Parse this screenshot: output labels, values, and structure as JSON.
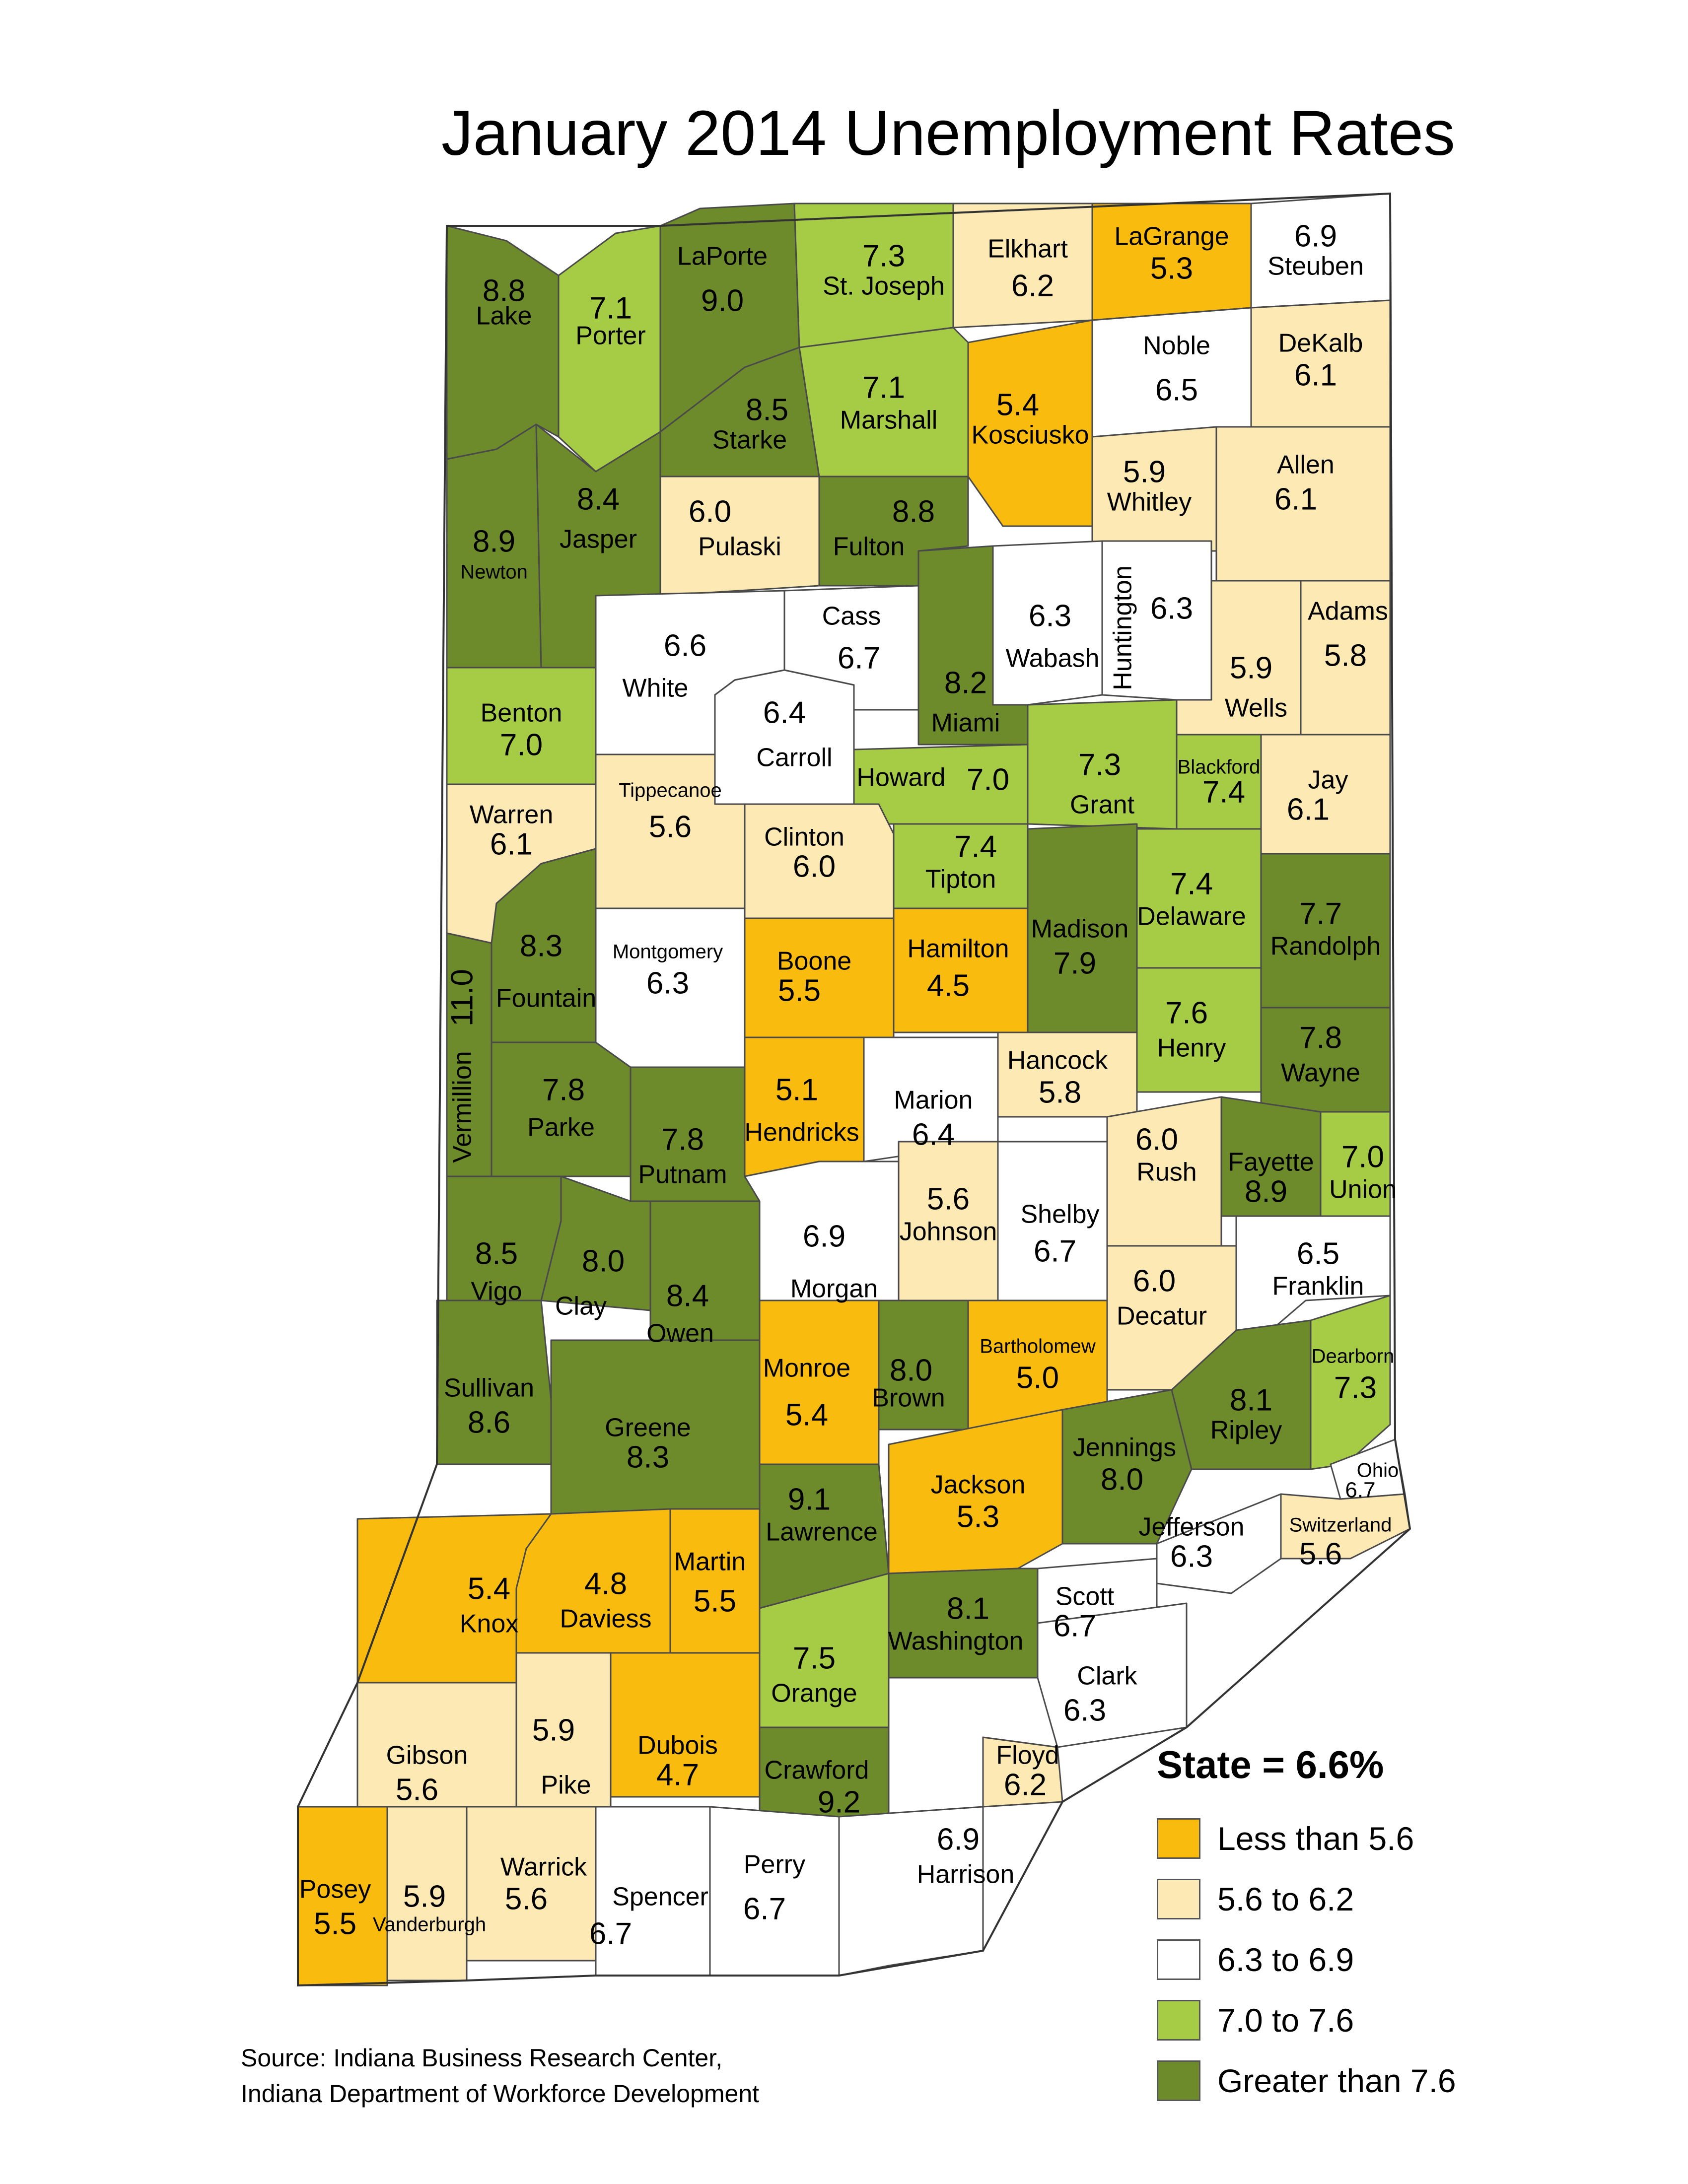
{
  "title": "January 2014 Unemployment Rates",
  "legend": {
    "title": "State = 6.6%",
    "items": [
      {
        "label": "Less than 5.6",
        "color": "#F9BC0E"
      },
      {
        "label": "5.6 to 6.2",
        "color": "#FDE9B4"
      },
      {
        "label": "6.3 to 6.9",
        "color": "#FFFFFF"
      },
      {
        "label": "7.0 to 7.6",
        "color": "#A6CC46"
      },
      {
        "label": "Greater than 7.6",
        "color": "#6D8B2B"
      }
    ]
  },
  "source": [
    "Source: Indiana Business Research Center,",
    "Indiana Department of Workforce Development"
  ],
  "counties": [
    {
      "name": "Lake",
      "rate": "8.8",
      "cat": 4
    },
    {
      "name": "Porter",
      "rate": "7.1",
      "cat": 3
    },
    {
      "name": "LaPorte",
      "rate": "9.0",
      "cat": 4
    },
    {
      "name": "St. Joseph",
      "rate": "7.3",
      "cat": 3
    },
    {
      "name": "Elkhart",
      "rate": "6.2",
      "cat": 1
    },
    {
      "name": "LaGrange",
      "rate": "5.3",
      "cat": 0
    },
    {
      "name": "Steuben",
      "rate": "6.9",
      "cat": 2
    },
    {
      "name": "Starke",
      "rate": "8.5",
      "cat": 4
    },
    {
      "name": "Marshall",
      "rate": "7.1",
      "cat": 3
    },
    {
      "name": "Kosciusko",
      "rate": "5.4",
      "cat": 0
    },
    {
      "name": "Noble",
      "rate": "6.5",
      "cat": 2
    },
    {
      "name": "DeKalb",
      "rate": "6.1",
      "cat": 1
    },
    {
      "name": "Newton",
      "rate": "8.9",
      "cat": 4
    },
    {
      "name": "Jasper",
      "rate": "8.4",
      "cat": 4
    },
    {
      "name": "Pulaski",
      "rate": "6.0",
      "cat": 1
    },
    {
      "name": "Fulton",
      "rate": "8.8",
      "cat": 4
    },
    {
      "name": "Whitley",
      "rate": "5.9",
      "cat": 1
    },
    {
      "name": "Allen",
      "rate": "6.1",
      "cat": 1
    },
    {
      "name": "White",
      "rate": "6.6",
      "cat": 2
    },
    {
      "name": "Cass",
      "rate": "6.7",
      "cat": 2
    },
    {
      "name": "Miami",
      "rate": "8.2",
      "cat": 4
    },
    {
      "name": "Wabash",
      "rate": "6.3",
      "cat": 2
    },
    {
      "name": "Huntington",
      "rate": "6.3",
      "cat": 2
    },
    {
      "name": "Wells",
      "rate": "5.9",
      "cat": 1
    },
    {
      "name": "Adams",
      "rate": "5.8",
      "cat": 1
    },
    {
      "name": "Benton",
      "rate": "7.0",
      "cat": 3
    },
    {
      "name": "Carroll",
      "rate": "6.4",
      "cat": 2
    },
    {
      "name": "Howard",
      "rate": "7.0",
      "cat": 3
    },
    {
      "name": "Grant",
      "rate": "7.3",
      "cat": 3
    },
    {
      "name": "Blackford",
      "rate": "7.4",
      "cat": 3
    },
    {
      "name": "Jay",
      "rate": "6.1",
      "cat": 1
    },
    {
      "name": "Warren",
      "rate": "6.1",
      "cat": 1
    },
    {
      "name": "Tippecanoe",
      "rate": "5.6",
      "cat": 1
    },
    {
      "name": "Clinton",
      "rate": "6.0",
      "cat": 1
    },
    {
      "name": "Tipton",
      "rate": "7.4",
      "cat": 3
    },
    {
      "name": "Madison",
      "rate": "7.9",
      "cat": 4
    },
    {
      "name": "Delaware",
      "rate": "7.4",
      "cat": 3
    },
    {
      "name": "Randolph",
      "rate": "7.7",
      "cat": 4
    },
    {
      "name": "Fountain",
      "rate": "8.3",
      "cat": 4
    },
    {
      "name": "Vermillion",
      "rate": "11.0",
      "cat": 4
    },
    {
      "name": "Montgomery",
      "rate": "6.3",
      "cat": 2
    },
    {
      "name": "Boone",
      "rate": "5.5",
      "cat": 0
    },
    {
      "name": "Hamilton",
      "rate": "4.5",
      "cat": 0
    },
    {
      "name": "Henry",
      "rate": "7.6",
      "cat": 3
    },
    {
      "name": "Wayne",
      "rate": "7.8",
      "cat": 4
    },
    {
      "name": "Parke",
      "rate": "7.8",
      "cat": 4
    },
    {
      "name": "Putnam",
      "rate": "7.8",
      "cat": 4
    },
    {
      "name": "Hendricks",
      "rate": "5.1",
      "cat": 0
    },
    {
      "name": "Marion",
      "rate": "6.4",
      "cat": 2
    },
    {
      "name": "Hancock",
      "rate": "5.8",
      "cat": 1
    },
    {
      "name": "Rush",
      "rate": "6.0",
      "cat": 1
    },
    {
      "name": "Fayette",
      "rate": "8.9",
      "cat": 4
    },
    {
      "name": "Union",
      "rate": "7.0",
      "cat": 3
    },
    {
      "name": "Vigo",
      "rate": "8.5",
      "cat": 4
    },
    {
      "name": "Clay",
      "rate": "8.0",
      "cat": 4
    },
    {
      "name": "Owen",
      "rate": "8.4",
      "cat": 4
    },
    {
      "name": "Morgan",
      "rate": "6.9",
      "cat": 2
    },
    {
      "name": "Johnson",
      "rate": "5.6",
      "cat": 1
    },
    {
      "name": "Shelby",
      "rate": "6.7",
      "cat": 2
    },
    {
      "name": "Decatur",
      "rate": "6.0",
      "cat": 1
    },
    {
      "name": "Franklin",
      "rate": "6.5",
      "cat": 2
    },
    {
      "name": "Sullivan",
      "rate": "8.6",
      "cat": 4
    },
    {
      "name": "Greene",
      "rate": "8.3",
      "cat": 4
    },
    {
      "name": "Monroe",
      "rate": "5.4",
      "cat": 0
    },
    {
      "name": "Brown",
      "rate": "8.0",
      "cat": 4
    },
    {
      "name": "Bartholomew",
      "rate": "5.0",
      "cat": 0
    },
    {
      "name": "Jennings",
      "rate": "8.0",
      "cat": 4
    },
    {
      "name": "Ripley",
      "rate": "8.1",
      "cat": 4
    },
    {
      "name": "Dearborn",
      "rate": "7.3",
      "cat": 3
    },
    {
      "name": "Ohio",
      "rate": "6.7",
      "cat": 2
    },
    {
      "name": "Switzerland",
      "rate": "5.6",
      "cat": 1
    },
    {
      "name": "Knox",
      "rate": "5.4",
      "cat": 0
    },
    {
      "name": "Daviess",
      "rate": "4.8",
      "cat": 0
    },
    {
      "name": "Martin",
      "rate": "5.5",
      "cat": 0
    },
    {
      "name": "Lawrence",
      "rate": "9.1",
      "cat": 4
    },
    {
      "name": "Jackson",
      "rate": "5.3",
      "cat": 0
    },
    {
      "name": "Jefferson",
      "rate": "6.3",
      "cat": 2
    },
    {
      "name": "Scott",
      "rate": "6.7",
      "cat": 2
    },
    {
      "name": "Washington",
      "rate": "8.1",
      "cat": 4
    },
    {
      "name": "Orange",
      "rate": "7.5",
      "cat": 3
    },
    {
      "name": "Clark",
      "rate": "6.3",
      "cat": 2
    },
    {
      "name": "Gibson",
      "rate": "5.6",
      "cat": 1
    },
    {
      "name": "Pike",
      "rate": "5.9",
      "cat": 1
    },
    {
      "name": "Dubois",
      "rate": "4.7",
      "cat": 0
    },
    {
      "name": "Crawford",
      "rate": "9.2",
      "cat": 4
    },
    {
      "name": "Floyd",
      "rate": "6.2",
      "cat": 1
    },
    {
      "name": "Posey",
      "rate": "5.5",
      "cat": 0
    },
    {
      "name": "Vanderburgh",
      "rate": "5.9",
      "cat": 1
    },
    {
      "name": "Warrick",
      "rate": "5.6",
      "cat": 1
    },
    {
      "name": "Spencer",
      "rate": "6.7",
      "cat": 2
    },
    {
      "name": "Perry",
      "rate": "6.7",
      "cat": 2
    },
    {
      "name": "Harrison",
      "rate": "6.9",
      "cat": 2
    }
  ]
}
